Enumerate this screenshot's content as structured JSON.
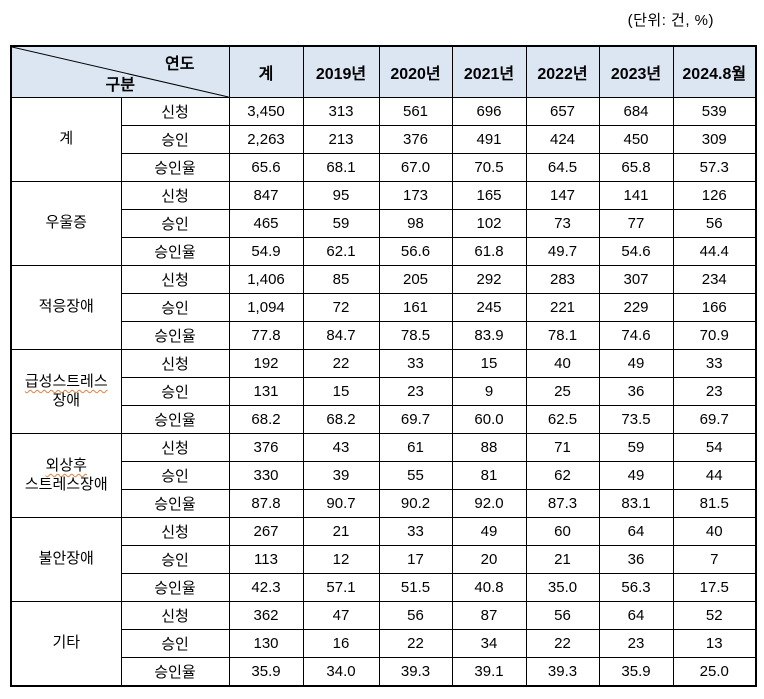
{
  "unit_label": "(단위: 건, %)",
  "header": {
    "diagonal": {
      "year_label": "연도",
      "category_label": "구분"
    },
    "columns": [
      "계",
      "2019년",
      "2020년",
      "2021년",
      "2022년",
      "2023년",
      "2024.8월"
    ]
  },
  "colors": {
    "header_bg": "#dbe6f2",
    "border": "#000000",
    "text": "#000000",
    "misspell_underline": "#e0813c"
  },
  "groups": [
    {
      "label_lines": [
        "계"
      ],
      "misspell_underline": false,
      "rows": [
        {
          "type": "신청",
          "values": [
            "3,450",
            "313",
            "561",
            "696",
            "657",
            "684",
            "539"
          ]
        },
        {
          "type": "승인",
          "values": [
            "2,263",
            "213",
            "376",
            "491",
            "424",
            "450",
            "309"
          ]
        },
        {
          "type": "승인율",
          "values": [
            "65.6",
            "68.1",
            "67.0",
            "70.5",
            "64.5",
            "65.8",
            "57.3"
          ]
        }
      ]
    },
    {
      "label_lines": [
        "우울증"
      ],
      "misspell_underline": false,
      "rows": [
        {
          "type": "신청",
          "values": [
            "847",
            "95",
            "173",
            "165",
            "147",
            "141",
            "126"
          ]
        },
        {
          "type": "승인",
          "values": [
            "465",
            "59",
            "98",
            "102",
            "73",
            "77",
            "56"
          ]
        },
        {
          "type": "승인율",
          "values": [
            "54.9",
            "62.1",
            "56.6",
            "61.8",
            "49.7",
            "54.6",
            "44.4"
          ]
        }
      ]
    },
    {
      "label_lines": [
        "적응장애"
      ],
      "misspell_underline": false,
      "rows": [
        {
          "type": "신청",
          "values": [
            "1,406",
            "85",
            "205",
            "292",
            "283",
            "307",
            "234"
          ]
        },
        {
          "type": "승인",
          "values": [
            "1,094",
            "72",
            "161",
            "245",
            "221",
            "229",
            "166"
          ]
        },
        {
          "type": "승인율",
          "values": [
            "77.8",
            "84.7",
            "78.5",
            "83.9",
            "78.1",
            "74.6",
            "70.9"
          ]
        }
      ]
    },
    {
      "label_lines": [
        "급성스트레스",
        "장애"
      ],
      "misspell_underline": true,
      "rows": [
        {
          "type": "신청",
          "values": [
            "192",
            "22",
            "33",
            "15",
            "40",
            "49",
            "33"
          ]
        },
        {
          "type": "승인",
          "values": [
            "131",
            "15",
            "23",
            "9",
            "25",
            "36",
            "23"
          ]
        },
        {
          "type": "승인율",
          "values": [
            "68.2",
            "68.2",
            "69.7",
            "60.0",
            "62.5",
            "73.5",
            "69.7"
          ]
        }
      ]
    },
    {
      "label_lines": [
        "외상후",
        "스트레스장애"
      ],
      "misspell_underline": true,
      "rows": [
        {
          "type": "신청",
          "values": [
            "376",
            "43",
            "61",
            "88",
            "71",
            "59",
            "54"
          ]
        },
        {
          "type": "승인",
          "values": [
            "330",
            "39",
            "55",
            "81",
            "62",
            "49",
            "44"
          ]
        },
        {
          "type": "승인율",
          "values": [
            "87.8",
            "90.7",
            "90.2",
            "92.0",
            "87.3",
            "83.1",
            "81.5"
          ]
        }
      ]
    },
    {
      "label_lines": [
        "불안장애"
      ],
      "misspell_underline": false,
      "rows": [
        {
          "type": "신청",
          "values": [
            "267",
            "21",
            "33",
            "49",
            "60",
            "64",
            "40"
          ]
        },
        {
          "type": "승인",
          "values": [
            "113",
            "12",
            "17",
            "20",
            "21",
            "36",
            "7"
          ]
        },
        {
          "type": "승인율",
          "values": [
            "42.3",
            "57.1",
            "51.5",
            "40.8",
            "35.0",
            "56.3",
            "17.5"
          ]
        }
      ]
    },
    {
      "label_lines": [
        "기타"
      ],
      "misspell_underline": false,
      "rows": [
        {
          "type": "신청",
          "values": [
            "362",
            "47",
            "56",
            "87",
            "56",
            "64",
            "52"
          ]
        },
        {
          "type": "승인",
          "values": [
            "130",
            "16",
            "22",
            "34",
            "22",
            "23",
            "13"
          ]
        },
        {
          "type": "승인율",
          "values": [
            "35.9",
            "34.0",
            "39.3",
            "39.1",
            "39.3",
            "35.9",
            "25.0"
          ]
        }
      ]
    }
  ]
}
